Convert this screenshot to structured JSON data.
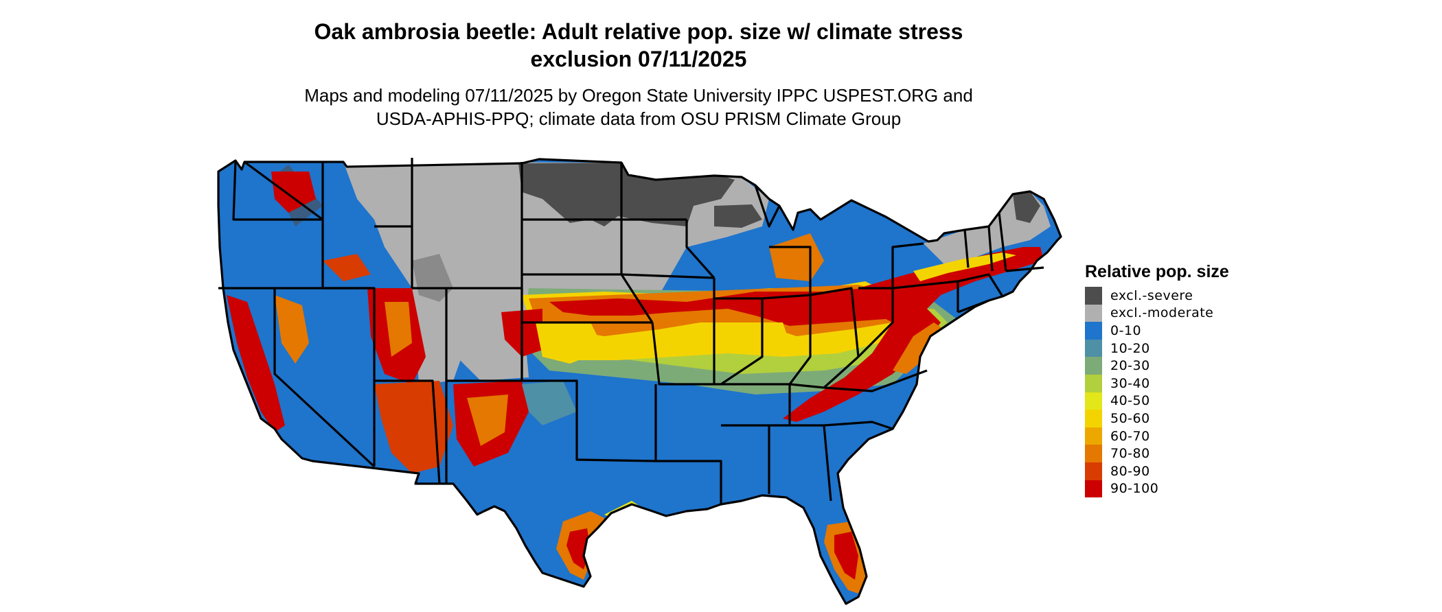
{
  "title": {
    "line1": "Oak ambrosia beetle: Adult relative pop. size w/ climate stress",
    "line2": "exclusion 07/11/2025"
  },
  "subtitle": {
    "line1": "Maps and modeling 07/11/2025 by Oregon State University IPPC USPEST.ORG and",
    "line2": "USDA-APHIS-PPQ; climate data from OSU PRISM Climate Group"
  },
  "legend": {
    "title": "Relative pop. size",
    "items": [
      {
        "label": "excl.-severe",
        "color": "#4d4d4d"
      },
      {
        "label": "excl.-moderate",
        "color": "#b0b0b0"
      },
      {
        "label": "0-10",
        "color": "#1f74cc"
      },
      {
        "label": "10-20",
        "color": "#4e90a6"
      },
      {
        "label": "20-30",
        "color": "#7dab78"
      },
      {
        "label": "30-40",
        "color": "#b2cf3d"
      },
      {
        "label": "40-50",
        "color": "#e3e619"
      },
      {
        "label": "50-60",
        "color": "#f4d400"
      },
      {
        "label": "60-70",
        "color": "#eda800"
      },
      {
        "label": "70-80",
        "color": "#e47800"
      },
      {
        "label": "80-90",
        "color": "#d83c00"
      },
      {
        "label": "90-100",
        "color": "#cc0000"
      }
    ]
  },
  "map": {
    "region": "Contiguous United States",
    "boundaries": "state borders",
    "background_class": "0-10"
  }
}
